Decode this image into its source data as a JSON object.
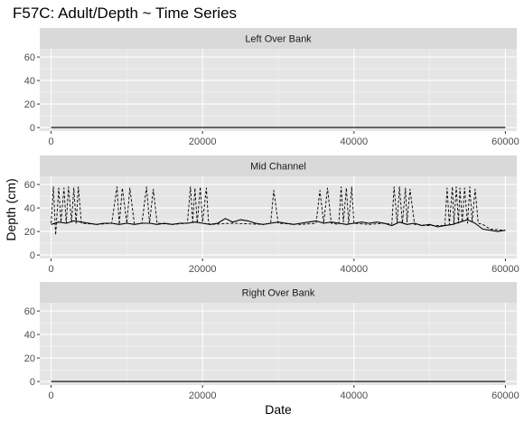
{
  "chart_data": {
    "type": "line",
    "title": "F57C: Adult/Depth ~ Time Series",
    "xlabel": "Date",
    "ylabel": "Depth (cm)",
    "facet_layout": "vertical",
    "shared_x": true,
    "xlim": [
      -1500,
      61500
    ],
    "ylim": [
      -3,
      67
    ],
    "x_ticks": [
      0,
      20000,
      40000,
      60000
    ],
    "y_ticks": [
      0,
      20,
      40,
      60
    ],
    "grid": true,
    "background": "#e5e5e5",
    "strip_color": "#d9d9d9",
    "grid_color": "#ffffff",
    "line_color": "#000000",
    "panels": [
      {
        "label": "Left Over Bank",
        "series": [
          {
            "style": "solid",
            "x": [
              0,
              60000
            ],
            "y": [
              0,
              0
            ]
          },
          {
            "style": "dashed",
            "x": [
              0,
              60000
            ],
            "y": [
              0,
              0
            ]
          }
        ]
      },
      {
        "label": "Mid Channel",
        "series": [
          {
            "style": "solid",
            "x": [
              0,
              1000,
              2000,
              3000,
              4000,
              5000,
              6000,
              7000,
              8000,
              9000,
              10000,
              11000,
              12000,
              13000,
              14000,
              15000,
              16000,
              17000,
              18000,
              19000,
              20000,
              21000,
              22000,
              23000,
              24000,
              25000,
              26000,
              27000,
              28000,
              29000,
              30000,
              31000,
              32000,
              33000,
              34000,
              35000,
              36000,
              37000,
              38000,
              39000,
              40000,
              41000,
              42000,
              43000,
              44000,
              45000,
              46000,
              47000,
              48000,
              49000,
              50000,
              51000,
              52000,
              53000,
              54000,
              55000,
              56000,
              57000,
              58000,
              59000,
              60000
            ],
            "y": [
              26,
              28,
              27,
              29,
              28,
              27,
              26,
              27,
              27,
              26,
              27,
              26,
              27,
              27,
              26,
              27,
              26,
              27,
              27,
              28,
              27,
              26,
              27,
              31,
              28,
              30,
              29,
              27,
              26,
              27,
              28,
              27,
              26,
              27,
              28,
              29,
              27,
              28,
              27,
              26,
              27,
              28,
              27,
              28,
              27,
              25,
              28,
              26,
              27,
              25,
              26,
              24,
              25,
              26,
              28,
              30,
              27,
              22,
              21,
              20,
              21
            ]
          },
          {
            "style": "dashed",
            "x": [
              0,
              300,
              600,
              1000,
              1300,
              1700,
              2000,
              2300,
              2700,
              3000,
              3300,
              3600,
              4000,
              6000,
              8000,
              8700,
              9000,
              9400,
              10000,
              10400,
              11000,
              12000,
              12600,
              13000,
              13500,
              14000,
              16000,
              18000,
              18400,
              18700,
              19000,
              19300,
              19700,
              20000,
              20500,
              20800,
              21000,
              24000,
              28000,
              29000,
              29400,
              30000,
              33000,
              35000,
              35500,
              36000,
              36500,
              37000,
              38000,
              38300,
              38600,
              39000,
              39300,
              39700,
              40000,
              42000,
              44000,
              45000,
              45300,
              45700,
              46000,
              46400,
              46800,
              47000,
              47400,
              48000,
              50000,
              52000,
              52300,
              52600,
              53000,
              53200,
              53500,
              53800,
              54000,
              54300,
              54600,
              55000,
              55300,
              55600,
              56000,
              56400,
              57000,
              58000,
              60000
            ],
            "y": [
              27,
              58,
              17,
              57,
              28,
              57,
              27,
              58,
              28,
              57,
              27,
              58,
              27,
              26,
              27,
              58,
              26,
              57,
              27,
              57,
              26,
              27,
              58,
              27,
              56,
              27,
              26,
              27,
              58,
              28,
              57,
              27,
              58,
              28,
              57,
              27,
              26,
              27,
              26,
              27,
              55,
              27,
              26,
              27,
              55,
              27,
              57,
              27,
              26,
              58,
              28,
              57,
              27,
              58,
              27,
              26,
              27,
              26,
              58,
              27,
              58,
              27,
              57,
              28,
              56,
              26,
              25,
              25,
              57,
              26,
              58,
              26,
              58,
              27,
              57,
              28,
              57,
              27,
              58,
              28,
              56,
              27,
              26,
              22,
              21
            ]
          }
        ]
      },
      {
        "label": "Right Over Bank",
        "series": [
          {
            "style": "solid",
            "x": [
              0,
              60000
            ],
            "y": [
              0,
              0
            ]
          },
          {
            "style": "dashed",
            "x": [
              0,
              60000
            ],
            "y": [
              0,
              0
            ]
          }
        ]
      }
    ]
  }
}
